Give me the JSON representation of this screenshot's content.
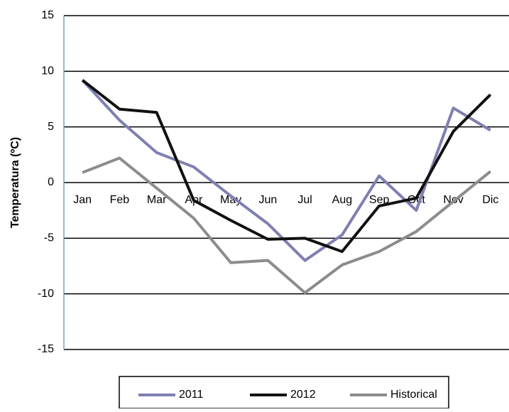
{
  "chart_data": {
    "type": "line",
    "y_label": "Temperatura (ºC)",
    "categories": [
      "Jan",
      "Feb",
      "Mar",
      "Apr",
      "May",
      "Jun",
      "Jul",
      "Aug",
      "Sep",
      "Oct",
      "Nov",
      "Dic"
    ],
    "series": [
      {
        "name": "2011",
        "color": "#7f7fb2",
        "values": [
          9.2,
          5.6,
          2.7,
          1.4,
          -1.2,
          -3.7,
          -7.0,
          -4.7,
          0.6,
          -2.5,
          6.7,
          4.7
        ]
      },
      {
        "name": "2012",
        "color": "#111111",
        "values": [
          9.2,
          6.6,
          6.3,
          -1.6,
          -3.4,
          -5.1,
          -5.0,
          -6.2,
          -2.1,
          -1.4,
          4.6,
          7.9
        ]
      },
      {
        "name": "Historical",
        "color": "#8c8c8c",
        "values": [
          0.9,
          2.2,
          -0.5,
          -3.2,
          -7.2,
          -7.0,
          -9.9,
          -7.4,
          -6.2,
          -4.4,
          -1.7,
          1.0
        ]
      }
    ],
    "ylim": [
      -15,
      15
    ],
    "yticks": [
      -15,
      -10,
      -5,
      0,
      5,
      10,
      15
    ],
    "grid": true,
    "legend": "bottom"
  }
}
